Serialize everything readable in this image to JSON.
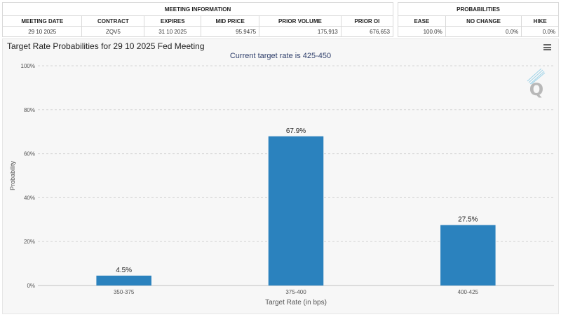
{
  "meeting_info": {
    "header": "MEETING INFORMATION",
    "columns": [
      "MEETING DATE",
      "CONTRACT",
      "EXPIRES",
      "MID PRICE",
      "PRIOR VOLUME",
      "PRIOR OI"
    ],
    "row": [
      "29 10 2025",
      "ZQV5",
      "31 10 2025",
      "95.9475",
      "175,913",
      "676,653"
    ]
  },
  "probabilities": {
    "header": "PROBABILITIES",
    "columns": [
      "EASE",
      "NO CHANGE",
      "HIKE"
    ],
    "row": [
      "100.0%",
      "0.0%",
      "0.0%"
    ]
  },
  "chart": {
    "title": "Target Rate Probabilities for 29 10 2025 Fed Meeting",
    "subtitle": "Current target rate is 425-450",
    "menu_icon": "hamburger-menu-icon",
    "logo_icon": "q-logo-icon",
    "bar_color": "#2b82be"
  },
  "chart_data": {
    "type": "bar",
    "categories": [
      "350-375",
      "375-400",
      "400-425"
    ],
    "values": [
      4.5,
      67.9,
      27.5
    ],
    "data_labels": [
      "4.5%",
      "67.9%",
      "27.5%"
    ],
    "xlabel": "Target Rate (in bps)",
    "ylabel": "Probability",
    "ylim": [
      0,
      100
    ],
    "yticks": [
      0,
      20,
      40,
      60,
      80,
      100
    ],
    "ytick_labels": [
      "0%",
      "20%",
      "40%",
      "60%",
      "80%",
      "100%"
    ],
    "grid": true,
    "legend": "none"
  }
}
